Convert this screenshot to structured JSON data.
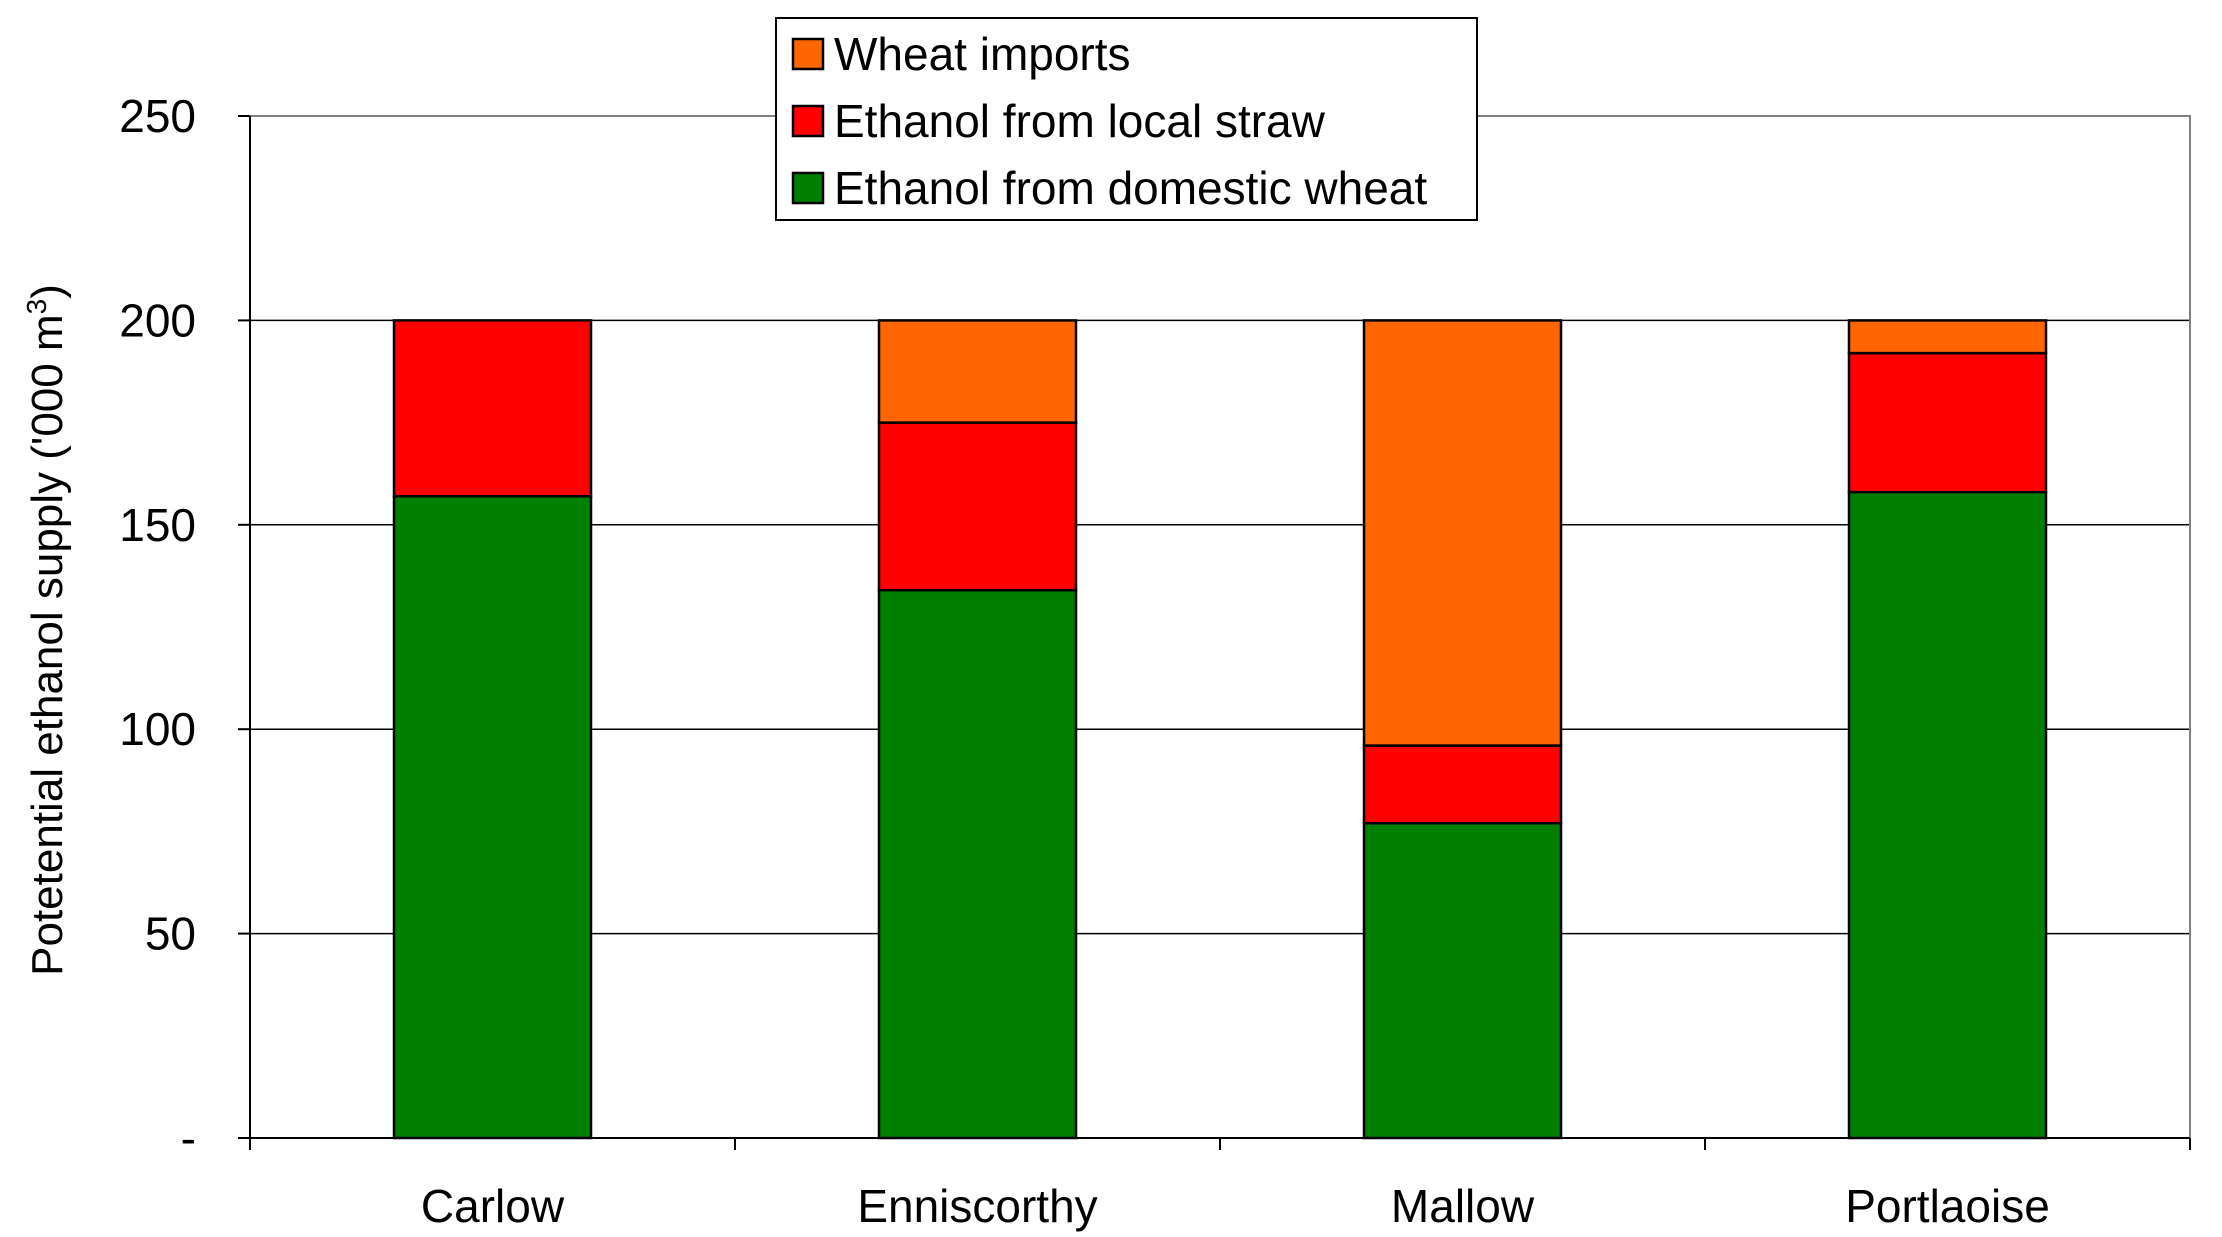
{
  "chart_data": {
    "type": "bar",
    "stacked": true,
    "title": "",
    "xlabel": "",
    "ylabel": "Potetential ethanol supply ('000 m",
    "ylabel_superscript": "3",
    "ylabel_suffix": ")",
    "ylim": [
      0,
      250
    ],
    "yticks": [
      {
        "value": 0,
        "label": "-"
      },
      {
        "value": 50,
        "label": "50"
      },
      {
        "value": 100,
        "label": "100"
      },
      {
        "value": 150,
        "label": "150"
      },
      {
        "value": 200,
        "label": "200"
      },
      {
        "value": 250,
        "label": "250"
      }
    ],
    "grid": true,
    "legend_position": "top-center",
    "categories": [
      "Carlow",
      "Enniscorthy",
      "Mallow",
      "Portlaoise"
    ],
    "series": [
      {
        "name": "Ethanol from domestic wheat",
        "color": "#008000",
        "values": [
          157,
          134,
          77,
          158
        ]
      },
      {
        "name": "Ethanol from local straw",
        "color": "#ff0000",
        "values": [
          43,
          41,
          19,
          34
        ]
      },
      {
        "name": "Wheat imports",
        "color": "#ff6600",
        "values": [
          0,
          25,
          104,
          8
        ]
      }
    ],
    "legend_order": [
      "Wheat imports",
      "Ethanol from local straw",
      "Ethanol from domestic wheat"
    ]
  }
}
